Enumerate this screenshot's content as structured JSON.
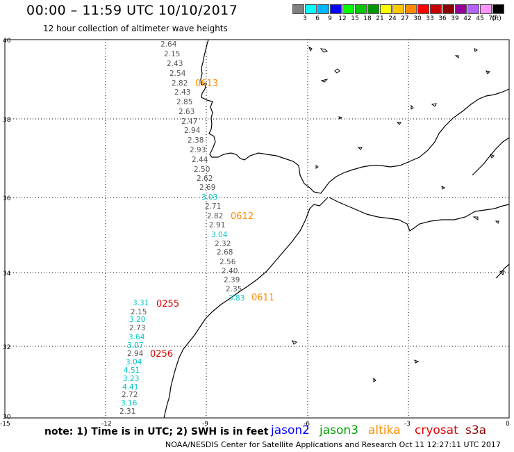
{
  "header": {
    "title": "00:00 – 11:59 UTC 10/10/2017",
    "subtitle": "12 hour collection of altimeter wave heights"
  },
  "legend": {
    "colors": [
      "#808080",
      "#00ffff",
      "#00b4ff",
      "#0000ff",
      "#00ff00",
      "#00c800",
      "#009600",
      "#ffff00",
      "#ffc800",
      "#ff8c00",
      "#ff0000",
      "#c80000",
      "#8b0000",
      "#960096",
      "#b464ff",
      "#ff96ff",
      "#000000"
    ],
    "labels": [
      "3",
      "6",
      "9",
      "12",
      "15",
      "18",
      "21",
      "24",
      "27",
      "30",
      "33",
      "36",
      "39",
      "42",
      "45",
      "70",
      "(ft)"
    ]
  },
  "axes": {
    "lat_labels": [
      "40",
      "38",
      "36",
      "34",
      "32",
      "30"
    ],
    "lon_labels": [
      "-15",
      "-12",
      "-9",
      "-6",
      "-3",
      "0"
    ]
  },
  "tracks": [
    {
      "values": [
        "2.64",
        "2.15",
        "2.43",
        "2.54",
        "2.82",
        "2.43",
        "2.85",
        "2.63",
        "2.47",
        "2.94",
        "2.38",
        "2.93",
        "2.44",
        "2.50",
        "2.62",
        "2.69",
        "3.03",
        "2.71",
        "2.82",
        "2.91",
        "3.04",
        "2.32",
        "2.68",
        "2.56",
        "2.40",
        "2.39",
        "2.35",
        "3.83"
      ],
      "colors": [
        "#555",
        "#555",
        "#555",
        "#555",
        "#555",
        "#555",
        "#555",
        "#555",
        "#555",
        "#555",
        "#555",
        "#555",
        "#555",
        "#555",
        "#555",
        "#555",
        "#00c8c8",
        "#555",
        "#555",
        "#555",
        "#00c8c8",
        "#555",
        "#555",
        "#555",
        "#555",
        "#555",
        "#555",
        "#00c8c8"
      ]
    },
    {
      "values": [
        "3.31",
        "2.15",
        "3.20",
        "2.73",
        "3.64",
        "3.07",
        "2.94",
        "3.04",
        "4.51",
        "3.23",
        "4.41",
        "2.72",
        "3.16",
        "2.31"
      ],
      "colors": [
        "#00c8c8",
        "#555",
        "#00c8c8",
        "#555",
        "#00c8c8",
        "#00c8c8",
        "#555",
        "#00c8c8",
        "#00c8c8",
        "#00c8c8",
        "#00c8c8",
        "#555",
        "#00c8c8",
        "#555"
      ]
    }
  ],
  "time_labels": [
    {
      "text": "0613",
      "color": "#ff8c00"
    },
    {
      "text": "0612",
      "color": "#ff8c00"
    },
    {
      "text": "0611",
      "color": "#ff8c00"
    },
    {
      "text": "0255",
      "color": "#e00000"
    },
    {
      "text": "0256",
      "color": "#e00000"
    }
  ],
  "note": "note: 1) Time is in UTC; 2) SWH is in feet",
  "satellites": [
    {
      "name": "jason2",
      "color": "#0000ff"
    },
    {
      "name": "jason3",
      "color": "#00a000"
    },
    {
      "name": "altika",
      "color": "#ff8c00"
    },
    {
      "name": "cryosat",
      "color": "#e00000"
    },
    {
      "name": "s3a",
      "color": "#8b0000"
    }
  ],
  "footer": "NOAA/NESDIS Center for Satellite Applications and Research    Oct 11 12:27:11 UTC 2017"
}
